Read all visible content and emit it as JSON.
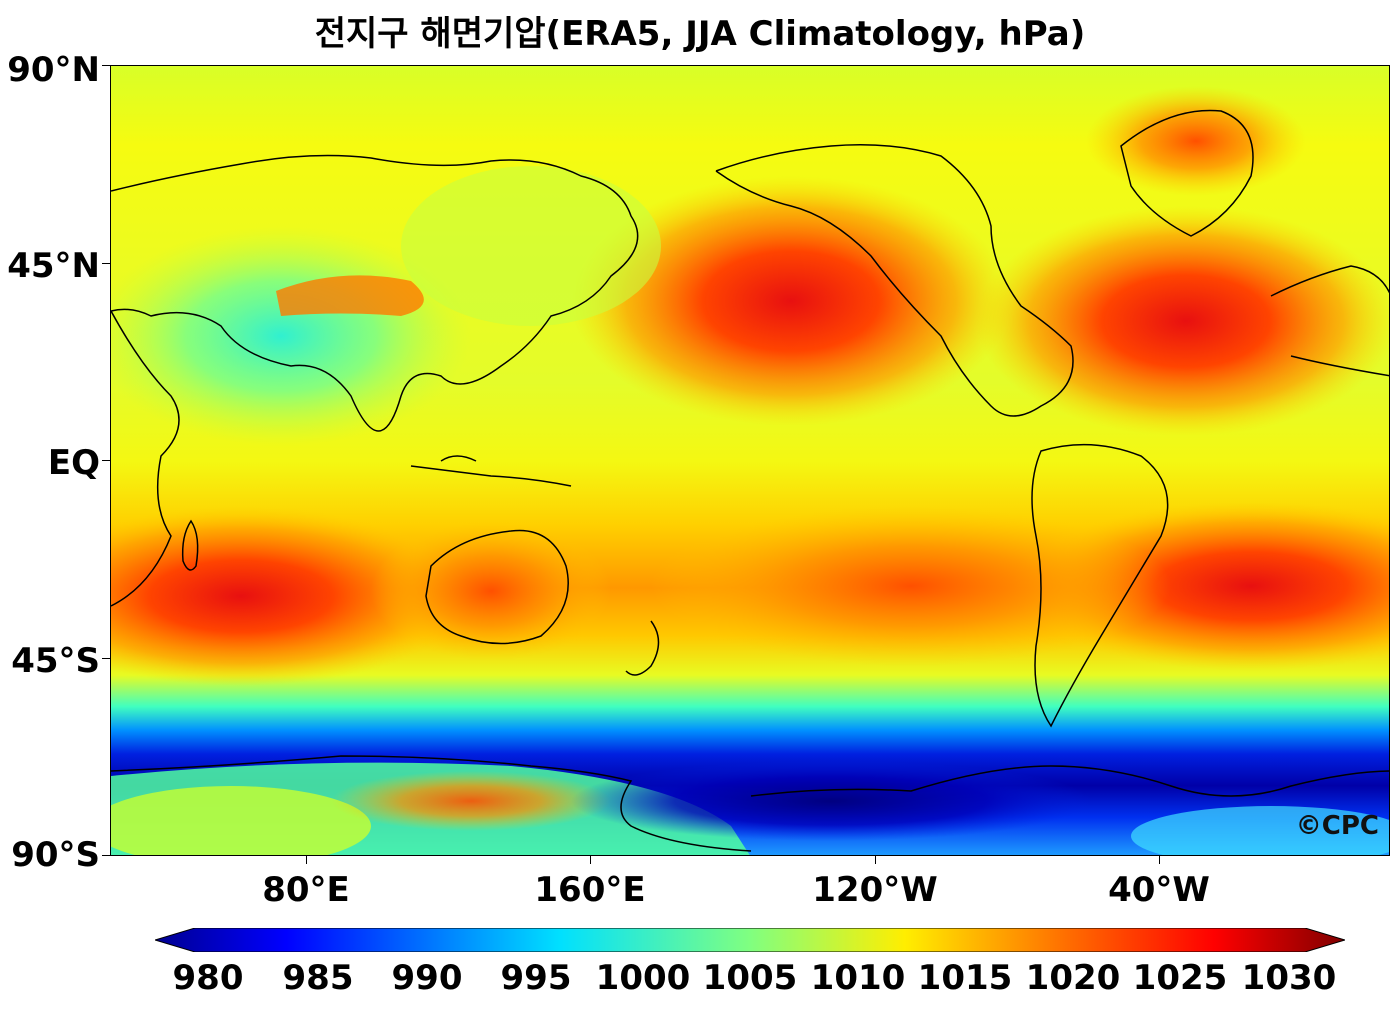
{
  "title": "전지구 해면기압(ERA5, JJA Climatology, hPa)",
  "watermark": "©CPC",
  "lat_labels": [
    "90°N",
    "45°N",
    "EQ",
    "45°S",
    "90°S"
  ],
  "lon_labels": [
    "80°E",
    "160°E",
    "120°W",
    "40°W"
  ],
  "colorbar": {
    "ticks": [
      "980",
      "985",
      "990",
      "995",
      "1000",
      "1005",
      "1010",
      "1015",
      "1020",
      "1025",
      "1030"
    ],
    "colormap": "jet",
    "extend": "both"
  },
  "chart_data": {
    "type": "heatmap",
    "title": "전지구 해면기압(ERA5, JJA Climatology, hPa)",
    "variable": "sea level pressure",
    "units": "hPa",
    "lat_range": [
      -90,
      90
    ],
    "lon_range": [
      25,
      385
    ],
    "value_range": [
      980,
      1030
    ],
    "features": [
      {
        "name": "North Pacific High",
        "lat": 38,
        "lon": 215,
        "value": 1025
      },
      {
        "name": "Azores High",
        "lat": 36,
        "lon": 322,
        "value": 1024
      },
      {
        "name": "Mascarene High",
        "lat": -30,
        "lon": 60,
        "value": 1026
      },
      {
        "name": "South Pacific High",
        "lat": -30,
        "lon": 265,
        "value": 1021
      },
      {
        "name": "South Atlantic High",
        "lat": -30,
        "lon": 350,
        "value": 1024
      },
      {
        "name": "Australian High",
        "lat": -30,
        "lon": 135,
        "value": 1021
      },
      {
        "name": "Greenland High",
        "lat": 75,
        "lon": 320,
        "value": 1018
      },
      {
        "name": "Asian Monsoon Low",
        "lat": 28,
        "lon": 70,
        "value": 1000
      },
      {
        "name": "Antarctic Trough",
        "lat": -65,
        "lon": 220,
        "value": 980
      }
    ]
  }
}
